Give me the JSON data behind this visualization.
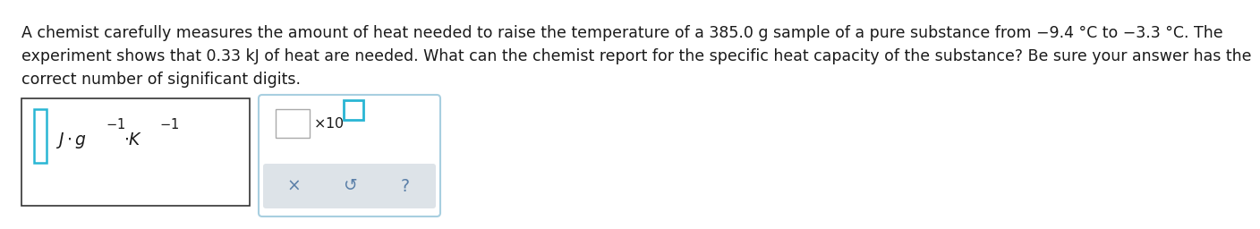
{
  "paragraph1": "A chemist carefully measures the amount of heat needed to raise the temperature of a 385.0 g sample of a pure substance from −9.4 °C to −3.3 °C. The",
  "paragraph2": "experiment shows that 0.33 kJ of heat are needed. What can the chemist report for the specific heat capacity of the substance? Be sure your answer has the",
  "paragraph3": "correct number of significant digits.",
  "bg_color": "#ffffff",
  "text_color": "#1a1a1a",
  "font_size": 12.5,
  "teal_color": "#29b6d4",
  "gray_color": "#dde3e8",
  "symbol_color": "#5a7fa8",
  "box2_border_color": "#a8cfe0"
}
